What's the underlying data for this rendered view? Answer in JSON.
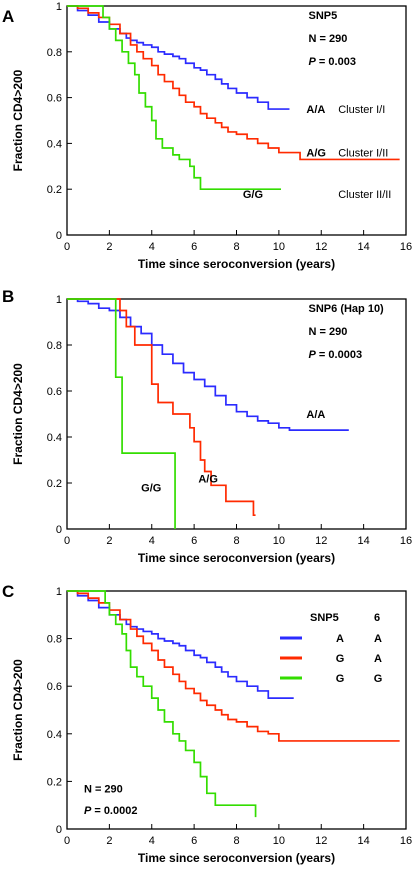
{
  "colors": {
    "blue": "#2b2bff",
    "red": "#ff2a00",
    "green": "#33dd00"
  },
  "chart_data": [
    {
      "type": "line",
      "panel_label": "A",
      "xlabel": "Time since seroconversion (years)",
      "ylabel": "Fraction CD4>200",
      "xlim": [
        0,
        16
      ],
      "ylim": [
        0,
        1
      ],
      "xticks": [
        0,
        2,
        4,
        6,
        8,
        10,
        12,
        14,
        16
      ],
      "yticks": [
        0,
        0.2,
        0.4,
        0.6,
        0.8,
        1
      ],
      "annotations": [
        {
          "text": "SNP5",
          "italic_prefix": "",
          "rest": "SNP5",
          "x": 11.4,
          "y": 0.96
        },
        {
          "text": "N = 290",
          "italic_prefix": "",
          "rest": "N = 290",
          "x": 11.4,
          "y": 0.86
        },
        {
          "text": "P = 0.003",
          "italic_prefix": "P",
          "rest": " = 0.003",
          "x": 11.4,
          "y": 0.76
        }
      ],
      "series": [
        {
          "name": "A/A",
          "color_key": "blue",
          "label": "A/A",
          "label_pos": [
            11.3,
            0.55
          ],
          "cluster": "Cluster I/I",
          "cluster_pos": [
            12.8,
            0.55
          ],
          "x": [
            0,
            0.5,
            1,
            1.5,
            2,
            2.5,
            2.8,
            3,
            3.3,
            3.6,
            4,
            4.3,
            4.6,
            5,
            5.3,
            5.6,
            6,
            6.3,
            6.6,
            7,
            7.3,
            7.6,
            8,
            8.5,
            9,
            9.5,
            10,
            10.5
          ],
          "y": [
            1,
            0.98,
            0.96,
            0.93,
            0.9,
            0.88,
            0.86,
            0.85,
            0.84,
            0.83,
            0.82,
            0.8,
            0.79,
            0.78,
            0.77,
            0.75,
            0.73,
            0.72,
            0.7,
            0.68,
            0.66,
            0.64,
            0.62,
            0.6,
            0.58,
            0.55,
            0.55,
            0.55
          ]
        },
        {
          "name": "A/G",
          "color_key": "red",
          "label": "A/G",
          "label_pos": [
            11.3,
            0.36
          ],
          "cluster": "Cluster I/II",
          "cluster_pos": [
            12.8,
            0.36
          ],
          "x": [
            0,
            0.5,
            1,
            1.5,
            2,
            2.5,
            3,
            3.3,
            3.6,
            4,
            4.3,
            4.6,
            5,
            5.3,
            5.6,
            6,
            6.3,
            6.6,
            7,
            7.3,
            7.6,
            8,
            8.5,
            9,
            9.5,
            10,
            11,
            12,
            13,
            14,
            15,
            15.7
          ],
          "y": [
            1,
            0.99,
            0.97,
            0.95,
            0.92,
            0.88,
            0.83,
            0.8,
            0.77,
            0.74,
            0.7,
            0.67,
            0.64,
            0.61,
            0.58,
            0.56,
            0.53,
            0.51,
            0.49,
            0.47,
            0.45,
            0.44,
            0.42,
            0.4,
            0.38,
            0.36,
            0.33,
            0.33,
            0.33,
            0.33,
            0.33,
            0.33
          ]
        },
        {
          "name": "G/G",
          "color_key": "green",
          "label": "G/G",
          "label_pos": [
            8.3,
            0.18
          ],
          "cluster": "Cluster II/II",
          "cluster_pos": [
            12.8,
            0.18
          ],
          "x": [
            0,
            1.4,
            1.7,
            2,
            2.3,
            2.6,
            2.9,
            3.2,
            3.4,
            3.7,
            4,
            4.2,
            4.5,
            5,
            5.3,
            5.8,
            6,
            6.3,
            7,
            8,
            9,
            10.1
          ],
          "y": [
            1,
            1,
            0.95,
            0.9,
            0.85,
            0.8,
            0.75,
            0.7,
            0.62,
            0.56,
            0.5,
            0.42,
            0.38,
            0.35,
            0.33,
            0.3,
            0.25,
            0.2,
            0.2,
            0.2,
            0.2,
            0.2
          ]
        }
      ]
    },
    {
      "type": "line",
      "panel_label": "B",
      "xlabel": "Time since seroconversion (years)",
      "ylabel": "Fraction CD4>200",
      "xlim": [
        0,
        16
      ],
      "ylim": [
        0,
        1
      ],
      "xticks": [
        0,
        2,
        4,
        6,
        8,
        10,
        12,
        14,
        16
      ],
      "yticks": [
        0,
        0.2,
        0.4,
        0.6,
        0.8,
        1
      ],
      "annotations": [
        {
          "text": "SNP6 (Hap 10)",
          "italic_prefix": "",
          "rest": "SNP6 (Hap 10)",
          "x": 11.4,
          "y": 0.96
        },
        {
          "text": "N = 290",
          "italic_prefix": "",
          "rest": "N = 290",
          "x": 11.4,
          "y": 0.86
        },
        {
          "text": "P = 0.0003",
          "italic_prefix": "P",
          "rest": " = 0.0003",
          "x": 11.4,
          "y": 0.76
        }
      ],
      "series": [
        {
          "name": "A/A",
          "color_key": "blue",
          "label": "A/A",
          "label_pos": [
            11.3,
            0.5
          ],
          "cluster": "",
          "cluster_pos": [
            0,
            0
          ],
          "x": [
            0,
            0.5,
            1,
            1.5,
            2,
            2.5,
            3,
            3.5,
            4,
            4.5,
            5,
            5.5,
            6,
            6.5,
            7,
            7.5,
            8,
            8.5,
            9,
            9.5,
            10,
            10.5,
            11,
            12,
            13.3
          ],
          "y": [
            1,
            0.99,
            0.98,
            0.96,
            0.95,
            0.92,
            0.88,
            0.85,
            0.8,
            0.76,
            0.72,
            0.68,
            0.65,
            0.62,
            0.58,
            0.54,
            0.51,
            0.49,
            0.47,
            0.46,
            0.44,
            0.43,
            0.43,
            0.43,
            0.43
          ]
        },
        {
          "name": "A/G",
          "color_key": "red",
          "label": "A/G",
          "label_pos": [
            6.2,
            0.22
          ],
          "cluster": "",
          "cluster_pos": [
            0,
            0
          ],
          "x": [
            0,
            2.5,
            2.8,
            3.2,
            4,
            4.3,
            5,
            5.8,
            6,
            6.3,
            6.5,
            6.8,
            7.5,
            8.3,
            8.8,
            8.9
          ],
          "y": [
            1,
            0.95,
            0.88,
            0.8,
            0.63,
            0.55,
            0.5,
            0.44,
            0.38,
            0.3,
            0.25,
            0.19,
            0.12,
            0.12,
            0.06,
            0.06
          ]
        },
        {
          "name": "G/G",
          "color_key": "green",
          "label": "G/G",
          "label_pos": [
            3.5,
            0.18
          ],
          "cluster": "",
          "cluster_pos": [
            0,
            0
          ],
          "x": [
            0,
            2,
            2.3,
            2.6,
            4,
            5.1,
            5.1
          ],
          "y": [
            1,
            1,
            0.66,
            0.33,
            0.33,
            0.33,
            0
          ]
        }
      ]
    },
    {
      "type": "line",
      "panel_label": "C",
      "xlabel": "Time since seroconversion (years)",
      "ylabel": "Fraction CD4>200",
      "xlim": [
        0,
        16
      ],
      "ylim": [
        0,
        1
      ],
      "xticks": [
        0,
        2,
        4,
        6,
        8,
        10,
        12,
        14,
        16
      ],
      "yticks": [
        0,
        0.2,
        0.4,
        0.6,
        0.8,
        1
      ],
      "legend": {
        "header": [
          "SNP5",
          "6"
        ],
        "rows": [
          {
            "color_key": "blue",
            "a": "A",
            "b": "A"
          },
          {
            "color_key": "red",
            "a": "G",
            "b": "A"
          },
          {
            "color_key": "green",
            "a": "G",
            "b": "G"
          }
        ]
      },
      "annotations": [
        {
          "text": "N = 290",
          "italic_prefix": "",
          "rest": "N = 290",
          "x": 0.8,
          "y": 0.17
        },
        {
          "text": "P = 0.0002",
          "italic_prefix": "P",
          "rest": " = 0.0002",
          "x": 0.8,
          "y": 0.08
        }
      ],
      "series": [
        {
          "name": "A A",
          "color_key": "blue",
          "label": "",
          "label_pos": [
            0,
            0
          ],
          "cluster": "",
          "cluster_pos": [
            0,
            0
          ],
          "x": [
            0,
            0.5,
            1,
            1.5,
            2,
            2.5,
            2.8,
            3,
            3.3,
            3.6,
            4,
            4.3,
            4.6,
            5,
            5.3,
            5.6,
            6,
            6.3,
            6.6,
            7,
            7.3,
            7.6,
            8,
            8.5,
            9,
            9.5,
            10,
            10.7
          ],
          "y": [
            1,
            0.98,
            0.96,
            0.93,
            0.9,
            0.88,
            0.86,
            0.85,
            0.84,
            0.83,
            0.82,
            0.8,
            0.79,
            0.78,
            0.77,
            0.75,
            0.73,
            0.72,
            0.7,
            0.68,
            0.66,
            0.64,
            0.62,
            0.6,
            0.58,
            0.55,
            0.55,
            0.55
          ]
        },
        {
          "name": "G A",
          "color_key": "red",
          "label": "",
          "label_pos": [
            0,
            0
          ],
          "cluster": "",
          "cluster_pos": [
            0,
            0
          ],
          "x": [
            0,
            0.5,
            1,
            1.5,
            2,
            2.5,
            3,
            3.3,
            3.6,
            4,
            4.3,
            4.6,
            5,
            5.3,
            5.6,
            6,
            6.3,
            6.6,
            7,
            7.3,
            7.6,
            8,
            8.5,
            9,
            9.5,
            10,
            11,
            12,
            13,
            14,
            15,
            15.7
          ],
          "y": [
            1,
            0.99,
            0.97,
            0.95,
            0.92,
            0.88,
            0.84,
            0.81,
            0.78,
            0.75,
            0.71,
            0.68,
            0.65,
            0.62,
            0.59,
            0.57,
            0.54,
            0.52,
            0.5,
            0.48,
            0.46,
            0.45,
            0.43,
            0.41,
            0.4,
            0.37,
            0.37,
            0.37,
            0.37,
            0.37,
            0.37,
            0.37
          ]
        },
        {
          "name": "G G",
          "color_key": "green",
          "label": "",
          "label_pos": [
            0,
            0
          ],
          "cluster": "",
          "cluster_pos": [
            0,
            0
          ],
          "x": [
            0,
            1.5,
            1.8,
            2,
            2.3,
            2.6,
            2.8,
            3,
            3.3,
            3.6,
            4,
            4.3,
            4.6,
            5,
            5.3,
            5.6,
            6,
            6.3,
            6.6,
            7,
            7.5,
            8,
            8.5,
            8.8,
            8.9
          ],
          "y": [
            1,
            1,
            0.95,
            0.9,
            0.86,
            0.82,
            0.75,
            0.68,
            0.64,
            0.6,
            0.55,
            0.5,
            0.45,
            0.4,
            0.37,
            0.33,
            0.28,
            0.22,
            0.15,
            0.1,
            0.1,
            0.1,
            0.1,
            0.1,
            0.05
          ]
        }
      ]
    }
  ]
}
